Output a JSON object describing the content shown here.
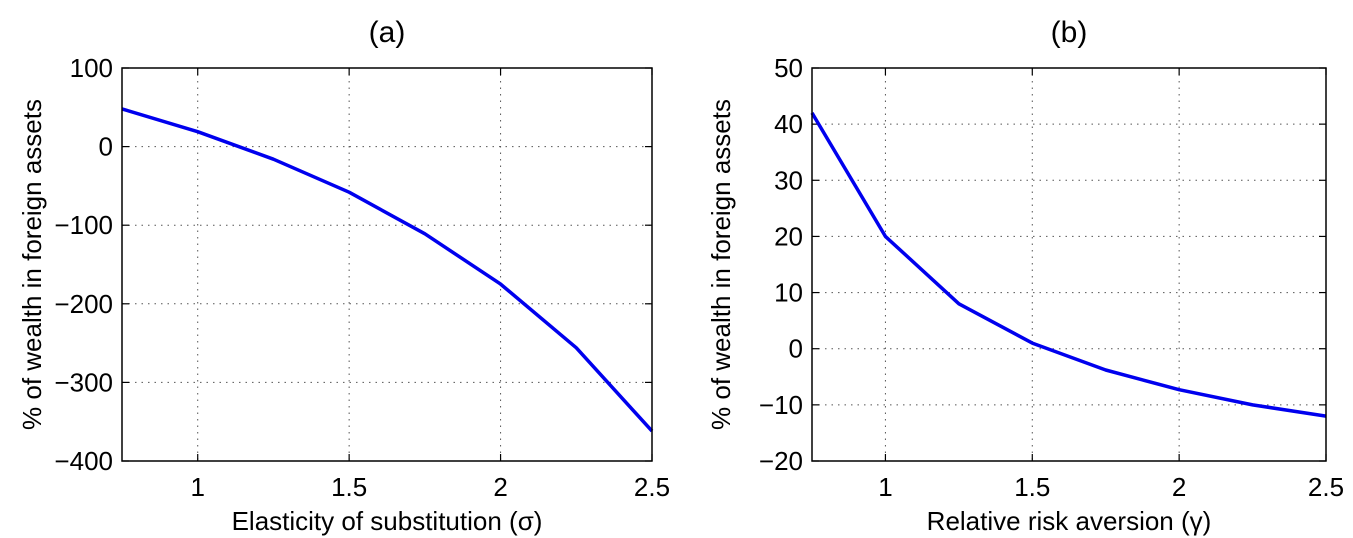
{
  "chart_data": [
    {
      "type": "line",
      "title": "(a)",
      "xlabel": "Elasticity of substitution (σ)",
      "ylabel": "% of wealth in foreign assets",
      "xlim": [
        0.75,
        2.5
      ],
      "ylim": [
        -400,
        100
      ],
      "xticks": [
        1,
        1.5,
        2,
        2.5
      ],
      "xtick_labels": [
        "1",
        "1.5",
        "2",
        "2.5"
      ],
      "yticks": [
        -400,
        -300,
        -200,
        -100,
        0,
        100
      ],
      "ytick_labels": [
        "−400",
        "−300",
        "−200",
        "−100",
        "0",
        "100"
      ],
      "grid": true,
      "series": [
        {
          "color": "#0000ee",
          "x": [
            0.75,
            1.0,
            1.25,
            1.5,
            1.75,
            2.0,
            2.25,
            2.5
          ],
          "y": [
            48,
            19,
            -16,
            -58,
            -111,
            -175,
            -256,
            -362
          ]
        }
      ]
    },
    {
      "type": "line",
      "title": "(b)",
      "xlabel": "Relative risk aversion (γ)",
      "ylabel": "% of wealth in foreign assets",
      "xlim": [
        0.75,
        2.5
      ],
      "ylim": [
        -20,
        50
      ],
      "xticks": [
        1,
        1.5,
        2,
        2.5
      ],
      "xtick_labels": [
        "1",
        "1.5",
        "2",
        "2.5"
      ],
      "yticks": [
        -20,
        -10,
        0,
        10,
        20,
        30,
        40,
        50
      ],
      "ytick_labels": [
        "−20",
        "−10",
        "0",
        "10",
        "20",
        "30",
        "40",
        "50"
      ],
      "grid": true,
      "series": [
        {
          "color": "#0000ee",
          "x": [
            0.75,
            1.0,
            1.25,
            1.5,
            1.75,
            2.0,
            2.25,
            2.5
          ],
          "y": [
            42,
            20,
            8,
            1,
            -3.8,
            -7.3,
            -10,
            -12
          ]
        }
      ]
    }
  ]
}
